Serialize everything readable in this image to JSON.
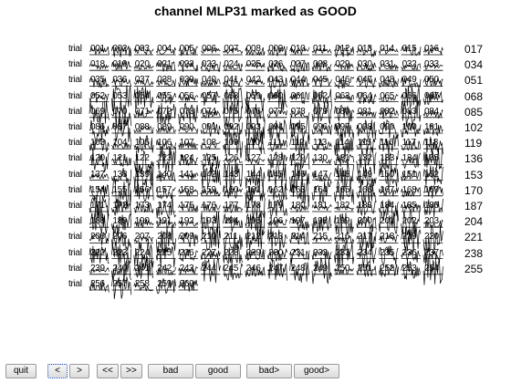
{
  "title": "channel MLP31 marked as GOOD",
  "grid": {
    "trial_label": "trial",
    "rows": [
      [
        "001",
        "002",
        "003",
        "004",
        "005",
        "006",
        "007",
        "008",
        "009",
        "010",
        "011",
        "012",
        "013",
        "014",
        "015",
        "016"
      ],
      [
        "018",
        "019",
        "020",
        "021",
        "022",
        "023",
        "024",
        "025",
        "026",
        "027",
        "028",
        "029",
        "030",
        "031",
        "032",
        "033"
      ],
      [
        "035",
        "036",
        "037",
        "038",
        "039",
        "040",
        "041",
        "042",
        "043",
        "044",
        "045",
        "046",
        "047",
        "048",
        "049",
        "050"
      ],
      [
        "052",
        "053",
        "054",
        "055",
        "056",
        "057",
        "058",
        "059",
        "060",
        "061",
        "062",
        "063",
        "064",
        "065",
        "066",
        "067"
      ],
      [
        "069",
        "070",
        "071",
        "072",
        "073",
        "074",
        "075",
        "076",
        "077",
        "078",
        "079",
        "080",
        "081",
        "082",
        "083",
        "084"
      ],
      [
        "086",
        "087",
        "088",
        "089",
        "090",
        "091",
        "092",
        "093",
        "094",
        "095",
        "096",
        "097",
        "098",
        "099",
        "100",
        "101"
      ],
      [
        "103",
        "104",
        "105",
        "106",
        "107",
        "108",
        "109",
        "110",
        "111",
        "112",
        "113",
        "114",
        "115",
        "116",
        "117",
        "118"
      ],
      [
        "120",
        "121",
        "122",
        "123",
        "124",
        "125",
        "126",
        "127",
        "128",
        "129",
        "130",
        "131",
        "132",
        "133",
        "134",
        "135"
      ],
      [
        "137",
        "138",
        "139",
        "140",
        "141",
        "142",
        "143",
        "144",
        "145",
        "146",
        "147",
        "148",
        "149",
        "150",
        "151",
        "152"
      ],
      [
        "154",
        "155",
        "156",
        "157",
        "158",
        "159",
        "160",
        "161",
        "162",
        "163",
        "164",
        "165",
        "166",
        "167",
        "168",
        "169"
      ],
      [
        "171",
        "172",
        "173",
        "174",
        "175",
        "176",
        "177",
        "178",
        "179",
        "180",
        "181",
        "182",
        "183",
        "184",
        "185",
        "186"
      ],
      [
        "188",
        "189",
        "190",
        "191",
        "192",
        "193",
        "194",
        "195",
        "196",
        "197",
        "198",
        "199",
        "200",
        "201",
        "202",
        "203"
      ],
      [
        "205",
        "206",
        "207",
        "208",
        "209",
        "210",
        "211",
        "212",
        "213",
        "214",
        "215",
        "216",
        "217",
        "218",
        "219",
        "220"
      ],
      [
        "222",
        "223",
        "224",
        "225",
        "226",
        "227",
        "228",
        "229",
        "230",
        "231",
        "232",
        "233",
        "234",
        "235",
        "236",
        "237"
      ],
      [
        "239",
        "240",
        "241",
        "242",
        "243",
        "244",
        "245",
        "246",
        "247",
        "248",
        "249",
        "250",
        "251",
        "252",
        "253",
        "254"
      ],
      [
        "256",
        "257",
        "258",
        "259",
        "260"
      ]
    ],
    "row_end_labels": [
      "017",
      "034",
      "051",
      "068",
      "085",
      "102",
      "119",
      "136",
      "153",
      "170",
      "187",
      "204",
      "221",
      "238",
      "255"
    ]
  },
  "buttons": {
    "quit": "quit",
    "prev": "<",
    "next": ">",
    "first": "<<",
    "last": ">>",
    "bad": "bad",
    "good": "good",
    "bad_next": "bad>",
    "good_next": "good>"
  }
}
